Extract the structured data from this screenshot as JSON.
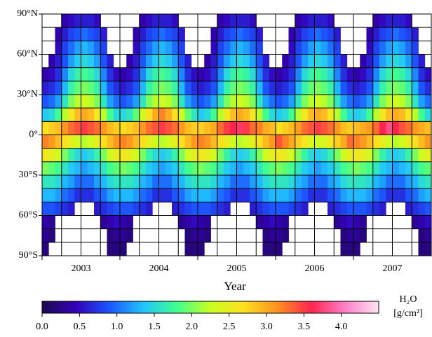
{
  "chart_data": {
    "type": "heatmap",
    "categories": [
      "2003",
      "2004",
      "2005",
      "2006",
      "2007"
    ],
    "x_label": "Year",
    "ylim": [
      -90,
      90
    ],
    "yticks": [
      {
        "value": 90,
        "label": "90°N"
      },
      {
        "value": 60,
        "label": "60°N"
      },
      {
        "value": 30,
        "label": "30°N"
      },
      {
        "value": 0,
        "label": "0°"
      },
      {
        "value": -30,
        "label": "30°S"
      },
      {
        "value": -60,
        "label": "60°S"
      },
      {
        "value": -90,
        "label": "90°S"
      }
    ],
    "minor_yticks": [
      80,
      70,
      50,
      40,
      20,
      10,
      -10,
      -20,
      -40,
      -50,
      -70,
      -80
    ],
    "grid": true,
    "clim": [
      0,
      4.5
    ],
    "colormap": [
      "#1e0a4e",
      "#3300b8",
      "#1c55ff",
      "#20c4ff",
      "#40ff90",
      "#c8ff20",
      "#ffe020",
      "#ff9020",
      "#ff2450",
      "#ff80c8",
      "#ffe4f2"
    ],
    "colorbar_ticks": [
      {
        "value": 0,
        "label": "0.0"
      },
      0.5,
      {
        "value": 1,
        "label": "1.0"
      },
      1.5,
      {
        "value": 2,
        "label": "2.0"
      },
      2.5,
      {
        "value": 3,
        "label": "3.0"
      },
      3.5,
      {
        "value": 4,
        "label": "4.0"
      }
    ],
    "colorbar_label": [
      "H₂O",
      "[g/cm²]"
    ],
    "values": [
      [
        null,
        null,
        null,
        0.4,
        0.5,
        0.6,
        0.6,
        0.6,
        0.5,
        null,
        null,
        null,
        null,
        null,
        null,
        0.4,
        0.5,
        0.6,
        0.6,
        0.6,
        0.5,
        null,
        null,
        null,
        null,
        null,
        null,
        0.4,
        0.5,
        0.6,
        0.6,
        0.6,
        0.5,
        null,
        null,
        null,
        null,
        null,
        null,
        0.4,
        0.5,
        0.6,
        0.6,
        0.6,
        0.5,
        null,
        null,
        null,
        null,
        null,
        null,
        0.4,
        0.5,
        0.6,
        0.6,
        0.6,
        0.5,
        null,
        null,
        null
      ],
      [
        null,
        null,
        0.4,
        0.6,
        0.8,
        0.9,
        1.0,
        0.9,
        0.8,
        0.6,
        null,
        null,
        null,
        null,
        0.4,
        0.6,
        0.8,
        0.9,
        1.0,
        0.9,
        0.8,
        0.6,
        null,
        null,
        null,
        null,
        0.4,
        0.6,
        0.8,
        0.9,
        1.0,
        0.9,
        0.8,
        0.6,
        null,
        null,
        null,
        null,
        0.4,
        0.6,
        0.8,
        0.9,
        1.0,
        0.9,
        0.8,
        0.6,
        null,
        null,
        null,
        null,
        0.4,
        0.6,
        0.8,
        0.9,
        1.0,
        0.9,
        0.8,
        0.6,
        null,
        null
      ],
      [
        null,
        null,
        0.5,
        0.8,
        1.0,
        1.2,
        1.3,
        1.2,
        1.0,
        0.8,
        null,
        null,
        null,
        null,
        0.5,
        0.8,
        1.0,
        1.2,
        1.3,
        1.2,
        1.0,
        0.8,
        null,
        null,
        null,
        null,
        0.5,
        0.8,
        1.0,
        1.2,
        1.3,
        1.2,
        1.0,
        0.8,
        null,
        null,
        null,
        null,
        0.5,
        0.8,
        1.0,
        1.2,
        1.3,
        1.2,
        1.0,
        0.8,
        null,
        null,
        null,
        null,
        0.5,
        0.8,
        1.0,
        1.2,
        1.3,
        1.2,
        1.0,
        0.8,
        null,
        null
      ],
      [
        null,
        0.4,
        0.6,
        0.9,
        1.2,
        1.4,
        1.5,
        1.4,
        1.2,
        0.9,
        0.6,
        null,
        null,
        0.4,
        0.6,
        0.9,
        1.2,
        1.4,
        1.5,
        1.4,
        1.2,
        0.9,
        0.6,
        null,
        null,
        0.4,
        0.6,
        0.9,
        1.2,
        1.4,
        1.5,
        1.4,
        1.2,
        0.9,
        0.6,
        null,
        null,
        0.4,
        0.6,
        0.9,
        1.2,
        1.4,
        1.5,
        1.4,
        1.2,
        0.9,
        0.6,
        null,
        null,
        0.4,
        0.6,
        0.9,
        1.2,
        1.4,
        1.5,
        1.4,
        1.2,
        0.9,
        0.6,
        null
      ],
      [
        0.4,
        0.5,
        0.7,
        1.1,
        1.5,
        1.7,
        1.8,
        1.7,
        1.5,
        1.1,
        0.7,
        0.5,
        0.4,
        0.5,
        0.7,
        1.1,
        1.5,
        1.7,
        1.8,
        1.7,
        1.5,
        1.1,
        0.7,
        0.5,
        0.4,
        0.5,
        0.7,
        1.1,
        1.5,
        1.7,
        1.8,
        1.7,
        1.5,
        1.1,
        0.7,
        0.5,
        0.4,
        0.5,
        0.7,
        1.1,
        1.5,
        1.7,
        1.8,
        1.7,
        1.5,
        1.1,
        0.7,
        0.5,
        0.4,
        0.5,
        0.7,
        1.1,
        1.5,
        1.7,
        1.8,
        1.7,
        1.5,
        1.1,
        0.7,
        0.5
      ],
      [
        0.6,
        0.7,
        0.9,
        1.3,
        1.7,
        1.9,
        2.0,
        1.9,
        1.7,
        1.3,
        0.9,
        0.7,
        0.6,
        0.7,
        0.9,
        1.3,
        1.7,
        1.9,
        2.0,
        1.9,
        1.7,
        1.3,
        0.9,
        0.7,
        0.6,
        0.7,
        0.9,
        1.3,
        1.7,
        1.9,
        2.0,
        1.9,
        1.7,
        1.3,
        0.9,
        0.7,
        0.6,
        0.7,
        0.9,
        1.3,
        1.7,
        1.9,
        2.0,
        1.9,
        1.7,
        1.3,
        0.9,
        0.7,
        0.6,
        0.7,
        0.9,
        1.3,
        1.7,
        1.9,
        2.0,
        1.9,
        1.7,
        1.3,
        0.9,
        0.7
      ],
      [
        0.9,
        1.0,
        1.2,
        1.6,
        2.0,
        2.2,
        2.3,
        2.2,
        2.0,
        1.6,
        1.2,
        1.0,
        0.9,
        1.0,
        1.2,
        1.6,
        2.0,
        2.2,
        2.3,
        2.2,
        2.0,
        1.6,
        1.2,
        1.0,
        0.9,
        1.0,
        1.2,
        1.6,
        2.0,
        2.2,
        2.3,
        2.2,
        2.0,
        1.6,
        1.2,
        1.0,
        0.9,
        1.0,
        1.2,
        1.6,
        2.0,
        2.2,
        2.3,
        2.2,
        2.0,
        1.6,
        1.2,
        1.0,
        0.9,
        1.0,
        1.2,
        1.6,
        2.0,
        2.2,
        2.3,
        2.2,
        2.0,
        1.6,
        1.2,
        1.0
      ],
      [
        1.4,
        1.5,
        1.8,
        2.2,
        2.6,
        2.9,
        3.0,
        2.9,
        2.6,
        2.2,
        1.8,
        1.5,
        1.5,
        1.6,
        1.9,
        2.3,
        2.7,
        3.0,
        3.2,
        3.0,
        2.7,
        2.3,
        1.9,
        1.6,
        1.4,
        1.5,
        1.8,
        2.2,
        2.6,
        2.9,
        3.0,
        2.9,
        2.6,
        2.2,
        1.8,
        1.5,
        1.4,
        1.5,
        1.8,
        2.2,
        2.6,
        2.9,
        3.0,
        2.9,
        2.6,
        2.2,
        1.8,
        1.5,
        1.4,
        1.5,
        1.8,
        2.2,
        2.6,
        2.9,
        3.0,
        2.9,
        2.6,
        2.2,
        1.8,
        1.5
      ],
      [
        2.7,
        2.8,
        2.9,
        3.1,
        3.3,
        3.4,
        3.5,
        3.4,
        3.3,
        3.1,
        2.9,
        2.8,
        2.7,
        2.8,
        2.9,
        3.1,
        3.3,
        3.4,
        3.5,
        3.4,
        3.3,
        3.1,
        2.9,
        2.8,
        2.8,
        2.9,
        3.0,
        3.3,
        3.5,
        3.6,
        3.7,
        3.5,
        3.3,
        3.2,
        3.0,
        2.9,
        2.7,
        2.8,
        2.9,
        3.1,
        3.3,
        3.4,
        3.5,
        3.4,
        3.3,
        3.1,
        2.9,
        2.8,
        2.9,
        3.0,
        3.1,
        3.3,
        3.6,
        3.8,
        3.6,
        3.4,
        3.3,
        3.1,
        3.0,
        2.9
      ],
      [
        3.2,
        3.1,
        2.9,
        2.7,
        2.5,
        2.3,
        2.2,
        2.3,
        2.5,
        2.7,
        2.9,
        3.1,
        3.2,
        3.1,
        2.9,
        2.7,
        2.5,
        2.3,
        2.2,
        2.3,
        2.5,
        2.7,
        2.9,
        3.1,
        3.2,
        3.1,
        2.9,
        2.7,
        2.5,
        2.3,
        2.2,
        2.3,
        2.5,
        2.7,
        2.9,
        3.1,
        3.4,
        3.2,
        3.0,
        2.8,
        2.6,
        2.4,
        2.3,
        2.4,
        2.6,
        2.8,
        3.0,
        3.3,
        3.2,
        3.1,
        2.9,
        2.7,
        2.5,
        2.3,
        2.2,
        2.3,
        2.5,
        2.7,
        2.9,
        3.1
      ],
      [
        2.6,
        2.5,
        2.3,
        2.0,
        1.7,
        1.5,
        1.4,
        1.5,
        1.7,
        2.0,
        2.3,
        2.5,
        2.6,
        2.5,
        2.3,
        2.0,
        1.7,
        1.5,
        1.4,
        1.5,
        1.7,
        2.0,
        2.3,
        2.5,
        2.6,
        2.5,
        2.3,
        2.0,
        1.7,
        1.5,
        1.4,
        1.5,
        1.7,
        2.0,
        2.3,
        2.5,
        2.6,
        2.5,
        2.3,
        2.0,
        1.7,
        1.5,
        1.4,
        1.5,
        1.7,
        2.0,
        2.3,
        2.5,
        2.6,
        2.5,
        2.3,
        2.0,
        1.7,
        1.5,
        1.4,
        1.5,
        1.7,
        2.0,
        2.3,
        2.5
      ],
      [
        2.0,
        1.9,
        1.8,
        1.6,
        1.4,
        1.3,
        1.2,
        1.3,
        1.4,
        1.6,
        1.8,
        1.9,
        2.0,
        1.9,
        1.8,
        1.6,
        1.4,
        1.3,
        1.2,
        1.3,
        1.4,
        1.6,
        1.8,
        1.9,
        2.0,
        1.9,
        1.8,
        1.6,
        1.4,
        1.3,
        1.2,
        1.3,
        1.4,
        1.6,
        1.8,
        1.9,
        2.0,
        1.9,
        1.8,
        1.6,
        1.4,
        1.3,
        1.2,
        1.3,
        1.4,
        1.6,
        1.8,
        1.9,
        2.0,
        1.9,
        1.8,
        1.6,
        1.4,
        1.3,
        1.2,
        1.3,
        1.4,
        1.6,
        1.8,
        1.9
      ],
      [
        1.6,
        1.6,
        1.5,
        1.3,
        1.2,
        1.0,
        1.0,
        1.0,
        1.2,
        1.3,
        1.5,
        1.6,
        1.6,
        1.6,
        1.5,
        1.3,
        1.2,
        1.0,
        1.0,
        1.0,
        1.2,
        1.3,
        1.5,
        1.6,
        1.6,
        1.6,
        1.5,
        1.3,
        1.2,
        1.0,
        1.0,
        1.0,
        1.2,
        1.3,
        1.5,
        1.6,
        1.6,
        1.6,
        1.5,
        1.3,
        1.2,
        1.0,
        1.0,
        1.0,
        1.2,
        1.3,
        1.5,
        1.6,
        1.6,
        1.6,
        1.5,
        1.3,
        1.2,
        1.0,
        1.0,
        1.0,
        1.2,
        1.3,
        1.5,
        1.6
      ],
      [
        1.3,
        1.3,
        1.2,
        1.0,
        0.9,
        0.7,
        0.7,
        0.7,
        0.9,
        1.0,
        1.2,
        1.3,
        1.3,
        1.3,
        1.2,
        1.0,
        0.9,
        0.7,
        0.7,
        0.7,
        0.9,
        1.0,
        1.2,
        1.3,
        1.3,
        1.3,
        1.2,
        1.0,
        0.9,
        0.7,
        0.7,
        0.7,
        0.9,
        1.0,
        1.2,
        1.3,
        1.3,
        1.3,
        1.2,
        1.0,
        0.9,
        0.7,
        0.7,
        0.7,
        0.9,
        1.0,
        1.2,
        1.3,
        1.3,
        1.3,
        1.2,
        1.0,
        0.9,
        0.7,
        0.7,
        0.7,
        0.9,
        1.0,
        1.2,
        1.3
      ],
      [
        0.9,
        0.9,
        0.8,
        0.7,
        0.6,
        null,
        null,
        null,
        0.6,
        0.7,
        0.8,
        0.9,
        0.9,
        0.9,
        0.8,
        0.7,
        0.6,
        null,
        null,
        null,
        0.6,
        0.7,
        0.8,
        0.9,
        0.9,
        0.9,
        0.8,
        0.7,
        0.6,
        null,
        null,
        null,
        0.6,
        0.7,
        0.8,
        0.9,
        0.9,
        0.9,
        0.8,
        0.7,
        0.6,
        null,
        null,
        null,
        0.6,
        0.7,
        0.8,
        0.9,
        0.9,
        0.9,
        0.8,
        0.7,
        0.6,
        null,
        null,
        null,
        0.6,
        0.7,
        0.8,
        0.9
      ],
      [
        0.4,
        0.3,
        null,
        null,
        null,
        null,
        null,
        null,
        null,
        0.3,
        0.4,
        0.5,
        0.4,
        0.3,
        null,
        null,
        null,
        null,
        null,
        null,
        null,
        0.3,
        0.4,
        0.5,
        0.4,
        0.3,
        null,
        null,
        null,
        null,
        null,
        null,
        null,
        0.3,
        0.4,
        0.5,
        0.4,
        0.3,
        null,
        null,
        null,
        null,
        null,
        null,
        null,
        0.3,
        0.4,
        0.5,
        0.4,
        0.3,
        null,
        null,
        null,
        null,
        null,
        null,
        null,
        0.3,
        0.4,
        0.5
      ],
      [
        0.3,
        0.2,
        null,
        null,
        null,
        null,
        null,
        null,
        null,
        null,
        0.2,
        0.3,
        0.3,
        0.2,
        null,
        null,
        null,
        null,
        null,
        null,
        null,
        null,
        0.2,
        0.3,
        0.3,
        0.2,
        null,
        null,
        null,
        null,
        null,
        null,
        null,
        null,
        0.2,
        0.3,
        0.3,
        0.2,
        null,
        null,
        null,
        null,
        null,
        null,
        null,
        null,
        0.2,
        0.3,
        0.3,
        0.2,
        null,
        null,
        null,
        null,
        null,
        null,
        null,
        null,
        0.2,
        0.3
      ],
      [
        0.2,
        null,
        null,
        null,
        null,
        null,
        null,
        null,
        null,
        null,
        0.2,
        0.2,
        0.2,
        null,
        null,
        null,
        null,
        null,
        null,
        null,
        null,
        null,
        0.2,
        0.2,
        0.2,
        null,
        null,
        null,
        null,
        null,
        null,
        null,
        null,
        null,
        0.2,
        0.2,
        0.2,
        null,
        null,
        null,
        null,
        null,
        null,
        null,
        null,
        null,
        0.2,
        0.2,
        0.2,
        null,
        null,
        null,
        null,
        null,
        null,
        null,
        null,
        null,
        0.2,
        0.2
      ]
    ]
  }
}
